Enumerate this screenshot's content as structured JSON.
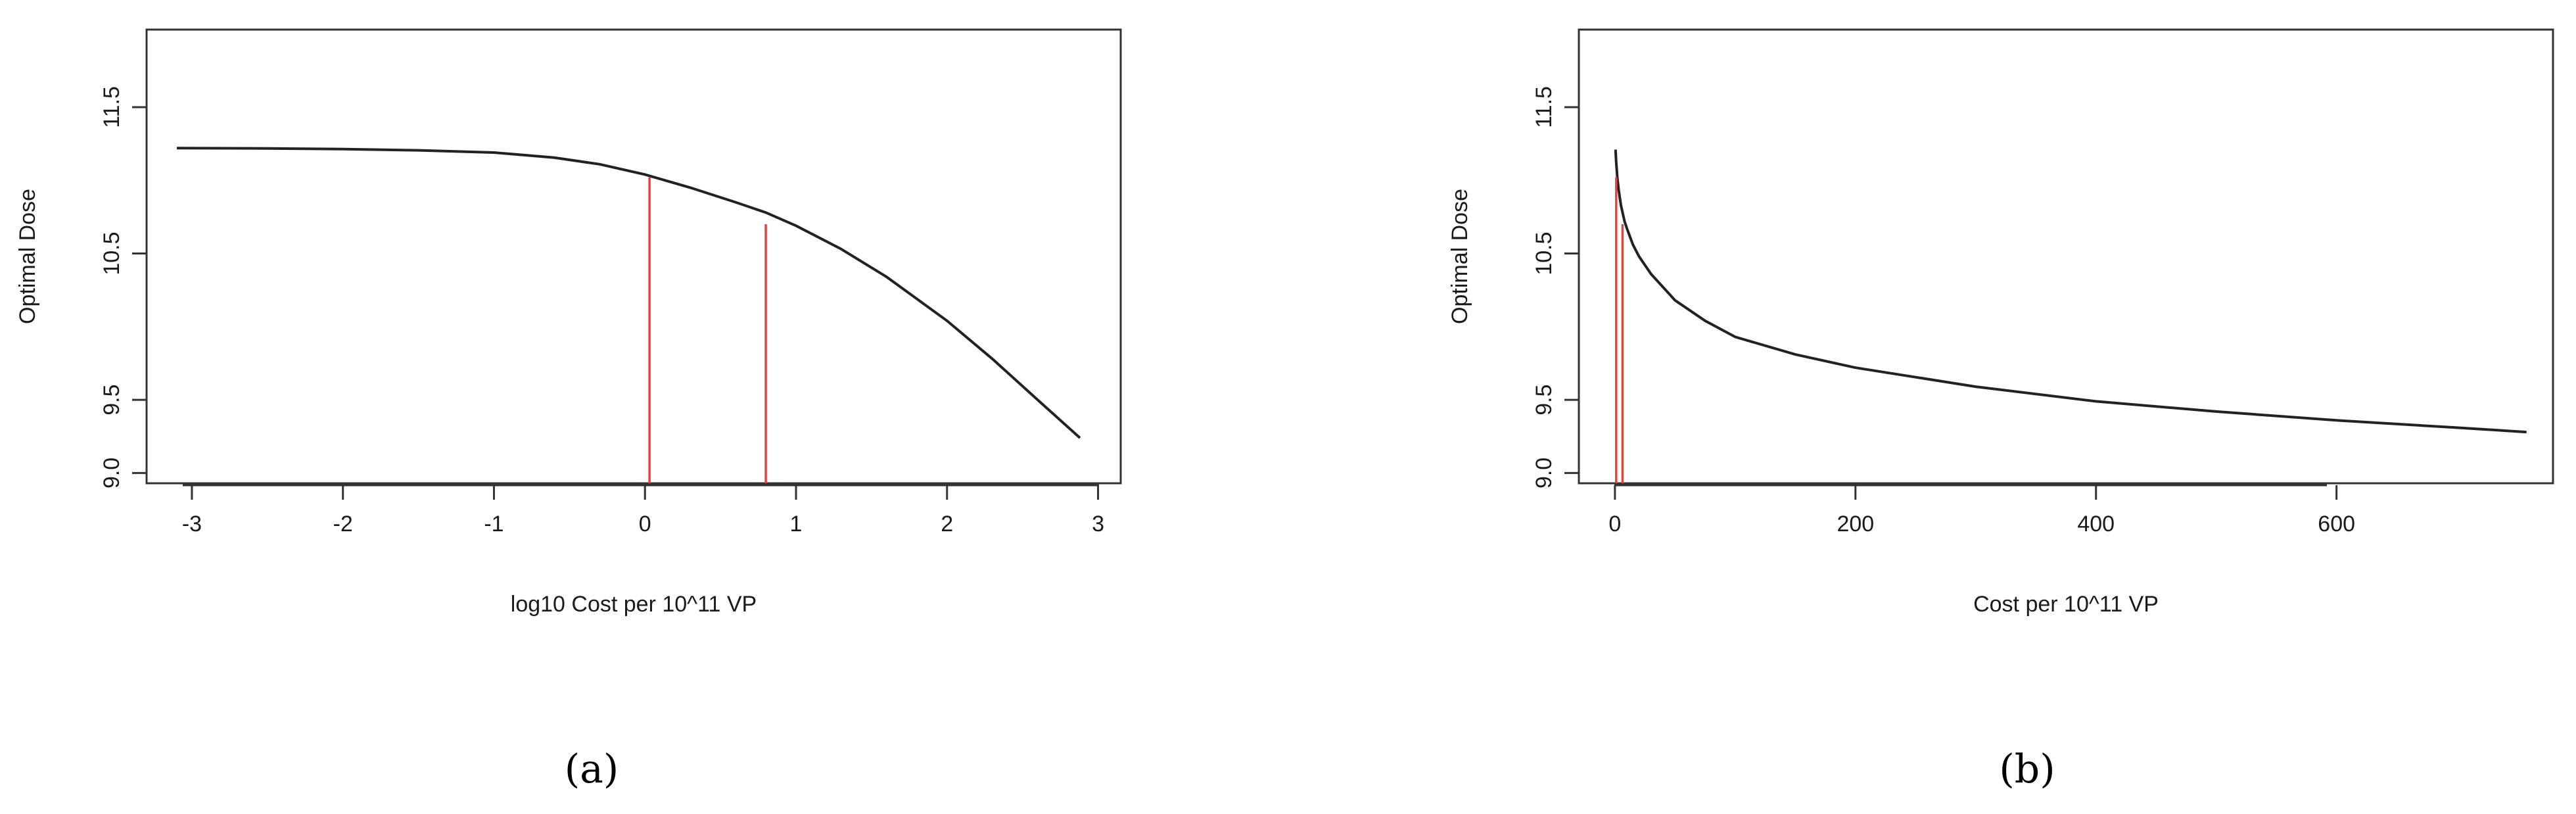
{
  "chart_data": [
    {
      "type": "line",
      "panel_label": "(a)",
      "xlabel": "log10 Cost per 10^11 VP",
      "ylabel": "Optimal Dose",
      "xlim": [
        -3.3,
        3.15
      ],
      "ylim": [
        8.93,
        12.03
      ],
      "x_ticks": [
        -3,
        -2,
        -1,
        0,
        1,
        2,
        3
      ],
      "x_tick_labels": [
        "-3",
        "-2",
        "-1",
        "0",
        "1",
        "2",
        "3"
      ],
      "y_ticks": [
        9.0,
        9.5,
        10.5,
        11.5
      ],
      "y_tick_labels": [
        "9.0",
        "9.5",
        "10.5",
        "11.5"
      ],
      "grid": false,
      "series": [
        {
          "color": "#222222",
          "x": [
            -3.1,
            -2.5,
            -2.0,
            -1.5,
            -1.0,
            -0.6,
            -0.3,
            0.0,
            0.3,
            0.6,
            0.8,
            1.0,
            1.3,
            1.6,
            2.0,
            2.3,
            2.6,
            2.88
          ],
          "y": [
            11.22,
            11.218,
            11.213,
            11.205,
            11.19,
            11.155,
            11.11,
            11.04,
            10.95,
            10.85,
            10.78,
            10.69,
            10.53,
            10.34,
            10.04,
            9.78,
            9.5,
            9.24
          ]
        }
      ],
      "reference_lines": [
        {
          "color": "#e8403a",
          "x": 0.03,
          "y": 11.02
        },
        {
          "color": "#e8403a",
          "x": 0.8,
          "y": 10.7
        }
      ]
    },
    {
      "type": "line",
      "panel_label": "(b)",
      "xlabel": "Cost per 10^11 VP",
      "ylabel": "Optimal Dose",
      "xlim": [
        -30,
        780
      ],
      "ylim": [
        8.93,
        12.03
      ],
      "x_ticks": [
        0,
        200,
        400,
        600
      ],
      "x_tick_labels": [
        "0",
        "200",
        "400",
        "600"
      ],
      "y_ticks": [
        9.0,
        9.5,
        10.5,
        11.5
      ],
      "y_tick_labels": [
        "9.0",
        "9.5",
        "10.5",
        "11.5"
      ],
      "grid": false,
      "series": [
        {
          "color": "#222222",
          "x": [
            0.5,
            1,
            2,
            3,
            5,
            8,
            10,
            15,
            20,
            30,
            50,
            75,
            100,
            150,
            200,
            300,
            400,
            500,
            600,
            700,
            758
          ],
          "y": [
            11.21,
            11.13,
            11.02,
            10.94,
            10.83,
            10.72,
            10.67,
            10.56,
            10.48,
            10.36,
            10.18,
            10.04,
            9.93,
            9.81,
            9.72,
            9.59,
            9.49,
            9.42,
            9.36,
            9.31,
            9.28
          ]
        }
      ],
      "reference_lines": [
        {
          "color": "#e8403a",
          "x": 1.05,
          "y": 11.02
        },
        {
          "color": "#e8403a",
          "x": 6.3,
          "y": 10.7
        }
      ]
    }
  ]
}
